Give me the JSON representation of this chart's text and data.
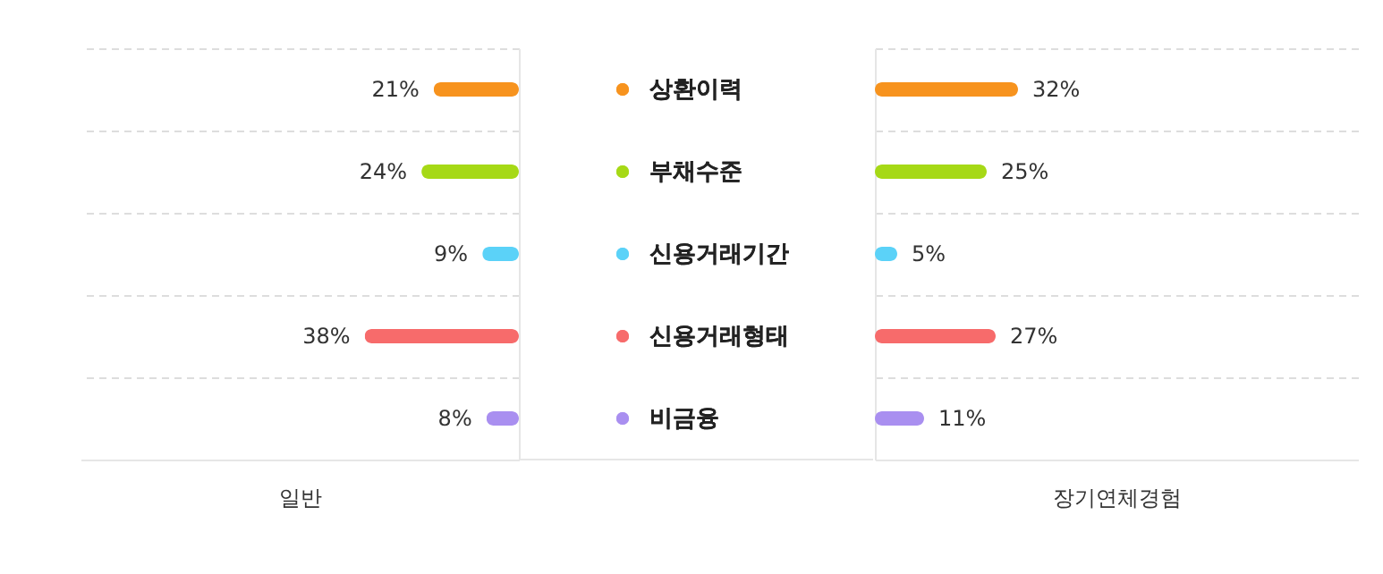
{
  "chart_data": [
    {
      "type": "bar",
      "orientation": "horizontal",
      "categories": [
        "상환이력",
        "부채수준",
        "신용거래기간",
        "신용거래형태",
        "비금융"
      ],
      "values": [
        21,
        24,
        9,
        38,
        8
      ],
      "colors": [
        "#f7931e",
        "#a6d916",
        "#5bd2f8",
        "#f76b6b",
        "#a98ff0"
      ],
      "value_labels": [
        "21%",
        "24%",
        "9%",
        "38%",
        "8%"
      ],
      "xlabel": "일반",
      "xlim": [
        108,
        0
      ],
      "tick_labels": false,
      "grid": "y"
    },
    {
      "type": "bar",
      "orientation": "horizontal",
      "categories": [
        "상환이력",
        "부채수준",
        "신용거래기간",
        "신용거래형태",
        "비금융"
      ],
      "values": [
        32,
        25,
        5,
        27,
        11
      ],
      "colors": [
        "#f7931e",
        "#a6d916",
        "#5bd2f8",
        "#f76b6b",
        "#a98ff0"
      ],
      "value_labels": [
        "32%",
        "25%",
        "5%",
        "27%",
        "11%"
      ],
      "xlabel": "장기연체경험",
      "xlim": [
        0,
        108
      ],
      "tick_labels": false,
      "grid": "y"
    }
  ]
}
